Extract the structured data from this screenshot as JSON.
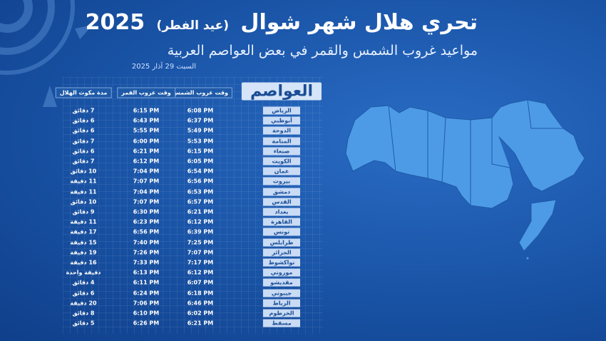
{
  "header": {
    "title": "تحري هلال شهر شوال",
    "occasion": "(عيد الفطر)",
    "year": "2025",
    "subtitle": "مواعيد غروب الشمس والقمر في بعض العواصم العربية",
    "date": "السبت 29 آذار 2025"
  },
  "table": {
    "columns": [
      "العواصم",
      "وقت غروب الشمس",
      "وقت غروب القمر",
      "مدة مكوث الهلال"
    ],
    "rows": [
      [
        "الرياض",
        "6:08 PM",
        "6:15 PM",
        "7 دقائق"
      ],
      [
        "أبوظبي",
        "6:37 PM",
        "6:43 PM",
        "6 دقائق"
      ],
      [
        "الدوحة",
        "5:49 PM",
        "5:55 PM",
        "6 دقائق"
      ],
      [
        "المنامة",
        "5:53 PM",
        "6:00 PM",
        "7 دقائق"
      ],
      [
        "صنعاء",
        "6:15 PM",
        "6:21 PM",
        "6 دقائق"
      ],
      [
        "الكويت",
        "6:05 PM",
        "6:12 PM",
        "7 دقائق"
      ],
      [
        "عمان",
        "6:54 PM",
        "7:04 PM",
        "10 دقائق"
      ],
      [
        "بيروت",
        "6:56 PM",
        "7:07 PM",
        "11 دقيقة"
      ],
      [
        "دمشق",
        "6:53 PM",
        "7:04 PM",
        "11 دقيقة"
      ],
      [
        "القدس",
        "6:57 PM",
        "7:07 PM",
        "10 دقائق"
      ],
      [
        "بغداد",
        "6:21 PM",
        "6:30 PM",
        "9 دقائق"
      ],
      [
        "القاهرة",
        "6:12 PM",
        "6:23 PM",
        "11 دقيقة"
      ],
      [
        "تونس",
        "6:39 PM",
        "6:56 PM",
        "17 دقيقة"
      ],
      [
        "طرابلس",
        "7:25 PM",
        "7:40 PM",
        "15 دقيقة"
      ],
      [
        "الجزائر",
        "7:07 PM",
        "7:26 PM",
        "19 دقيقة"
      ],
      [
        "نواكشوط",
        "7:17 PM",
        "7:33 PM",
        "16 دقيقة"
      ],
      [
        "موروني",
        "6:12 PM",
        "6:13 PM",
        "دقيقة واحدة"
      ],
      [
        "مقديشو",
        "6:07 PM",
        "6:11 PM",
        "4 دقائق"
      ],
      [
        "جيبوتي",
        "6:18 PM",
        "6:24 PM",
        "6 دقائق"
      ],
      [
        "الرباط",
        "6:46 PM",
        "7:06 PM",
        "20 دقيقة"
      ],
      [
        "الخرطوم",
        "6:02 PM",
        "6:10 PM",
        "8 دقائق"
      ],
      [
        "مسقط",
        "6:21 PM",
        "6:26 PM",
        "5 دقائق"
      ]
    ]
  }
}
